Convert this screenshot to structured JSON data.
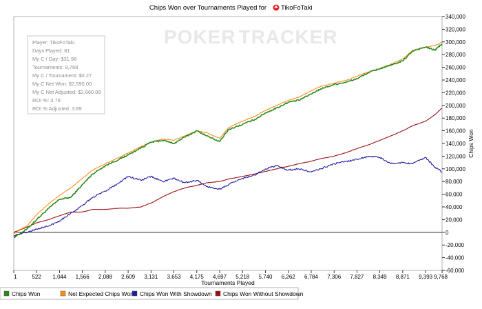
{
  "title": {
    "prefix": "Chips Won over Tournaments Played for",
    "player": "TikoFoTaki"
  },
  "watermark": {
    "part1": "POKER",
    "part2": "TRACKER"
  },
  "stats_box": {
    "lines": [
      "Player: TikoFoTaki",
      "Days Played: 81",
      "My C / Day: $31.98",
      "Tournaments: 9,768",
      "My C / Tournament: $0.27",
      "My C Net Won: $2,590.00",
      "My C Net Adjusted: $2,660.08",
      "ROI %: 3.79",
      "ROI % Adjusted: 3.89"
    ]
  },
  "colors": {
    "chips_won": "#2a8a1c",
    "net_expected": "#ff8c1a",
    "with_showdown": "#1c1ca0",
    "without_showdown": "#9a1010"
  },
  "chart_data": {
    "type": "line",
    "xlabel": "Tournaments Played",
    "ylabel": "Chips Won",
    "xlim": [
      1,
      9768
    ],
    "ylim": [
      -60000,
      340000
    ],
    "x_ticks": [
      "1",
      "522",
      "1,044",
      "1,566",
      "2,088",
      "2,609",
      "3,131",
      "3,653",
      "4,175",
      "4,697",
      "5,218",
      "5,740",
      "6,262",
      "6,784",
      "7,306",
      "7,827",
      "8,349",
      "8,871",
      "9,393",
      "9,768"
    ],
    "x_tick_values": [
      1,
      522,
      1044,
      1566,
      2088,
      2609,
      3131,
      3653,
      4175,
      4697,
      5218,
      5740,
      6262,
      6784,
      7306,
      7827,
      8349,
      8871,
      9393,
      9768
    ],
    "y_ticks": [
      "-60,000",
      "-40,000",
      "-20,000",
      "0",
      "20,000",
      "40,000",
      "60,000",
      "80,000",
      "100,000",
      "120,000",
      "140,000",
      "160,000",
      "180,000",
      "200,000",
      "220,000",
      "240,000",
      "260,000",
      "280,000",
      "300,000",
      "320,000",
      "340,000"
    ],
    "y_tick_values": [
      -60000,
      -40000,
      -20000,
      0,
      20000,
      40000,
      60000,
      80000,
      100000,
      120000,
      140000,
      160000,
      180000,
      200000,
      220000,
      240000,
      260000,
      280000,
      300000,
      320000,
      340000
    ],
    "x": [
      1,
      300,
      522,
      800,
      1044,
      1300,
      1566,
      1800,
      2088,
      2400,
      2609,
      2900,
      3131,
      3400,
      3653,
      3900,
      4175,
      4400,
      4697,
      4900,
      5218,
      5500,
      5740,
      6000,
      6262,
      6500,
      6784,
      7000,
      7306,
      7600,
      7827,
      8100,
      8349,
      8600,
      8871,
      9100,
      9393,
      9600,
      9768
    ],
    "series": [
      {
        "name": "Chips Won",
        "values": [
          -8000,
          5000,
          20000,
          38000,
          52000,
          55000,
          75000,
          92000,
          105000,
          115000,
          122000,
          133000,
          142000,
          145000,
          140000,
          150000,
          160000,
          152000,
          143000,
          162000,
          170000,
          178000,
          188000,
          196000,
          205000,
          208000,
          218000,
          226000,
          233000,
          237000,
          242000,
          252000,
          258000,
          263000,
          270000,
          286000,
          292000,
          287000,
          297000
        ]
      },
      {
        "name": "Net Expected Chips Won",
        "values": [
          -2000,
          10000,
          28000,
          45000,
          58000,
          70000,
          85000,
          98000,
          108000,
          118000,
          125000,
          135000,
          142000,
          147000,
          145000,
          152000,
          160000,
          157000,
          148000,
          165000,
          175000,
          183000,
          192000,
          200000,
          208000,
          213000,
          223000,
          230000,
          235000,
          240000,
          246000,
          253000,
          258000,
          265000,
          273000,
          287000,
          292000,
          294000,
          300000
        ]
      },
      {
        "name": "Chips Won With Showdown",
        "values": [
          -5000,
          0,
          5000,
          10000,
          18000,
          30000,
          42000,
          55000,
          65000,
          78000,
          88000,
          82000,
          88000,
          80000,
          85000,
          78000,
          82000,
          72000,
          68000,
          75000,
          85000,
          90000,
          100000,
          105000,
          98000,
          100000,
          95000,
          100000,
          108000,
          112000,
          115000,
          120000,
          118000,
          108000,
          110000,
          108000,
          118000,
          103000,
          95000
        ]
      },
      {
        "name": "Chips Won Without Showdown",
        "values": [
          0,
          8000,
          15000,
          20000,
          26000,
          32000,
          32000,
          36000,
          36000,
          38000,
          38000,
          40000,
          46000,
          56000,
          64000,
          70000,
          74000,
          78000,
          80000,
          84000,
          88000,
          92000,
          96000,
          100000,
          104000,
          108000,
          112000,
          116000,
          120000,
          126000,
          132000,
          138000,
          145000,
          152000,
          160000,
          168000,
          175000,
          185000,
          196000
        ]
      }
    ]
  },
  "legend": {
    "items": [
      "Chips Won",
      "Net Expected Chips Won",
      "Chips Won With Showdown",
      "Chips Won Without Showdown"
    ]
  }
}
